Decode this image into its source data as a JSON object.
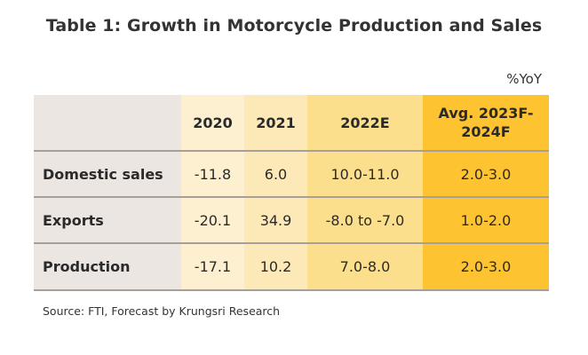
{
  "title": "Table 1: Growth in Motorcycle Production and Sales",
  "unit": "%YoY",
  "source": "Source: FTI, Forecast by Krungsri Research",
  "colors": {
    "label_col": "#ece6e3",
    "col_2020": "#fdf0d0",
    "col_2021": "#fde9b8",
    "col_2022": "#fcdf8c",
    "col_avg": "#fdc330",
    "divider": "#a89f99"
  },
  "table": {
    "headers": [
      "2020",
      "2021",
      "2022E",
      "Avg. 2023F-2024F"
    ],
    "rows": [
      {
        "label": "Domestic sales",
        "values": [
          "-11.8",
          "6.0",
          "10.0-11.0",
          "2.0-3.0"
        ]
      },
      {
        "label": "Exports",
        "values": [
          "-20.1",
          "34.9",
          "-8.0 to -7.0",
          "1.0-2.0"
        ]
      },
      {
        "label": "Production",
        "values": [
          "-17.1",
          "10.2",
          "7.0-8.0",
          "2.0-3.0"
        ]
      }
    ]
  },
  "chart_data": {
    "type": "table",
    "title": "Table 1: Growth in Motorcycle Production and Sales",
    "unit": "%YoY",
    "columns": [
      "2020",
      "2021",
      "2022E",
      "Avg. 2023F-2024F"
    ],
    "rows": [
      "Domestic sales",
      "Exports",
      "Production"
    ],
    "cells": [
      [
        "-11.8",
        "6.0",
        "10.0-11.0",
        "2.0-3.0"
      ],
      [
        "-20.1",
        "34.9",
        "-8.0 to -7.0",
        "1.0-2.0"
      ],
      [
        "-17.1",
        "10.2",
        "7.0-8.0",
        "2.0-3.0"
      ]
    ],
    "source": "Source: FTI, Forecast by Krungsri Research"
  }
}
